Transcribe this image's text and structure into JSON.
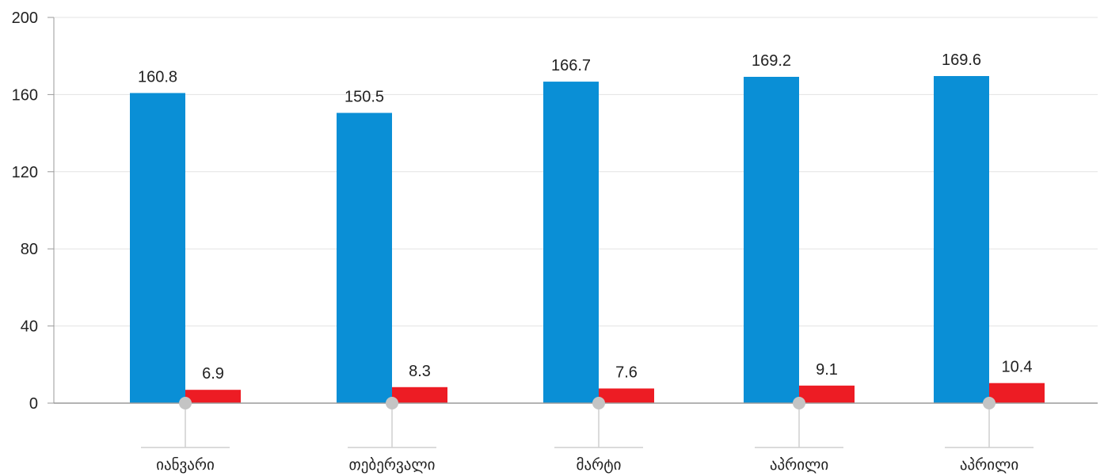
{
  "chart_data": {
    "type": "bar",
    "categories": [
      "იანვარი",
      "თებერვალი",
      "მარტი",
      "აპრილი",
      "აპრილი"
    ],
    "series": [
      {
        "values": [
          160.8,
          150.5,
          166.7,
          169.2,
          169.6
        ],
        "color": "#0a8fd6"
      },
      {
        "values": [
          6.9,
          8.3,
          7.6,
          9.1,
          10.4
        ],
        "color": "#ed1c24"
      }
    ],
    "ylim": [
      0,
      200
    ],
    "yticks": [
      0,
      40,
      80,
      120,
      160,
      200
    ],
    "grid": true,
    "title": "",
    "xlabel": "",
    "ylabel": ""
  }
}
